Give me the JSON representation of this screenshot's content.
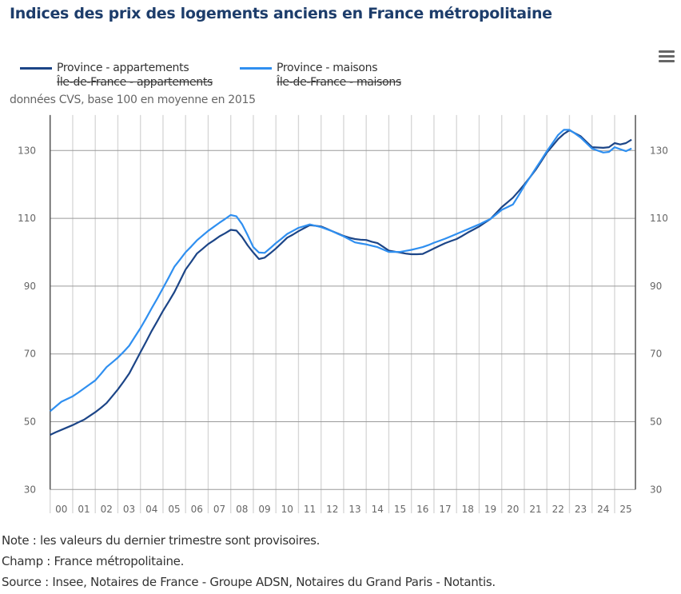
{
  "chart_data": {
    "type": "line",
    "title": "Indices des prix des logements anciens en France métropolitaine",
    "subtitle": "données CVS, base 100 en moyenne en 2015",
    "xlabel": "",
    "ylabel": "",
    "ylim": [
      30,
      140
    ],
    "y_ticks": [
      "30",
      "50",
      "70",
      "90",
      "110",
      "130"
    ],
    "x_tick_labels": [
      "00",
      "01",
      "02",
      "03",
      "04",
      "05",
      "06",
      "07",
      "08",
      "09",
      "10",
      "11",
      "12",
      "13",
      "14",
      "15",
      "16",
      "17",
      "18",
      "19",
      "20",
      "21",
      "22",
      "23",
      "24",
      "25"
    ],
    "x_start_year": 2000,
    "frequency": "quarterly",
    "grid": true,
    "legend_position": "top-left",
    "legend": [
      {
        "name": "Province - appartements",
        "color": "#1c4587",
        "visible": true
      },
      {
        "name": "Province - maisons",
        "color": "#2f8ff0",
        "visible": true
      },
      {
        "name": "Île-de-France - appartements",
        "visible": false
      },
      {
        "name": "Île-de-France - maisons",
        "visible": false
      }
    ],
    "series": [
      {
        "name": "Province - appartements",
        "color": "#1c4587",
        "values": [
          46.1,
          46.9,
          47.6,
          48.3,
          49.0,
          49.8,
          50.6,
          51.7,
          52.8,
          54.1,
          55.5,
          57.5,
          59.5,
          61.8,
          64.2,
          67.3,
          70.5,
          73.6,
          76.8,
          79.7,
          82.7,
          85.4,
          88.2,
          91.5,
          94.9,
          97.2,
          99.6,
          101.0,
          102.4,
          103.5,
          104.7,
          105.6,
          106.6,
          106.4,
          104.5,
          102.0,
          99.9,
          98.0,
          98.4,
          99.7,
          101.1,
          102.7,
          104.3,
          105.2,
          106.2,
          107.1,
          108.0,
          107.8,
          107.6,
          106.9,
          106.2,
          105.5,
          104.8,
          104.3,
          103.9,
          103.7,
          103.6,
          103.1,
          102.7,
          101.6,
          100.5,
          100.2,
          99.9,
          99.6,
          99.4,
          99.4,
          99.5,
          100.3,
          101.1,
          101.9,
          102.7,
          103.3,
          103.9,
          104.8,
          105.8,
          106.7,
          107.6,
          108.7,
          109.8,
          111.5,
          113.3,
          114.7,
          116.1,
          118.0,
          120.0,
          122.1,
          124.3,
          126.8,
          129.4,
          131.4,
          133.4,
          134.9,
          136.0,
          135.1,
          134.2,
          132.6,
          131.0,
          130.9,
          130.8,
          131.0,
          132.2,
          131.8,
          132.2,
          133.2
        ]
      },
      {
        "name": "Province - maisons",
        "color": "#2f8ff0",
        "values": [
          53.1,
          54.5,
          55.9,
          56.7,
          57.5,
          58.6,
          59.8,
          61.0,
          62.2,
          64.1,
          66.1,
          67.5,
          68.9,
          70.6,
          72.4,
          75.0,
          77.6,
          80.5,
          83.5,
          86.4,
          89.4,
          92.5,
          95.7,
          97.8,
          100.0,
          101.7,
          103.5,
          104.9,
          106.3,
          107.5,
          108.7,
          109.8,
          111.0,
          110.6,
          108.3,
          105.0,
          101.5,
          99.9,
          99.8,
          101.2,
          102.7,
          104.0,
          105.4,
          106.3,
          107.2,
          107.7,
          108.2,
          107.8,
          107.4,
          106.8,
          106.2,
          105.4,
          104.7,
          103.8,
          102.9,
          102.6,
          102.3,
          101.9,
          101.5,
          100.8,
          100.1,
          100.1,
          100.1,
          100.4,
          100.7,
          101.1,
          101.5,
          102.1,
          102.8,
          103.4,
          104.0,
          104.7,
          105.4,
          106.1,
          106.8,
          107.5,
          108.2,
          109.0,
          109.8,
          111.1,
          112.5,
          113.3,
          114.1,
          116.8,
          119.6,
          122.1,
          124.7,
          127.2,
          129.8,
          132.2,
          134.6,
          136.1,
          136.1,
          135.0,
          133.8,
          132.2,
          130.6,
          130.0,
          129.4,
          129.6,
          131.0,
          130.4,
          129.8,
          130.6
        ]
      }
    ]
  },
  "menu_icon": "hamburger-menu-icon",
  "notes": [
    "Note : les valeurs du dernier trimestre sont provisoires.",
    "Champ : France métropolitaine.",
    "Source : Insee, Notaires de France - Groupe ADSN, Notaires du Grand Paris - Notantis."
  ]
}
